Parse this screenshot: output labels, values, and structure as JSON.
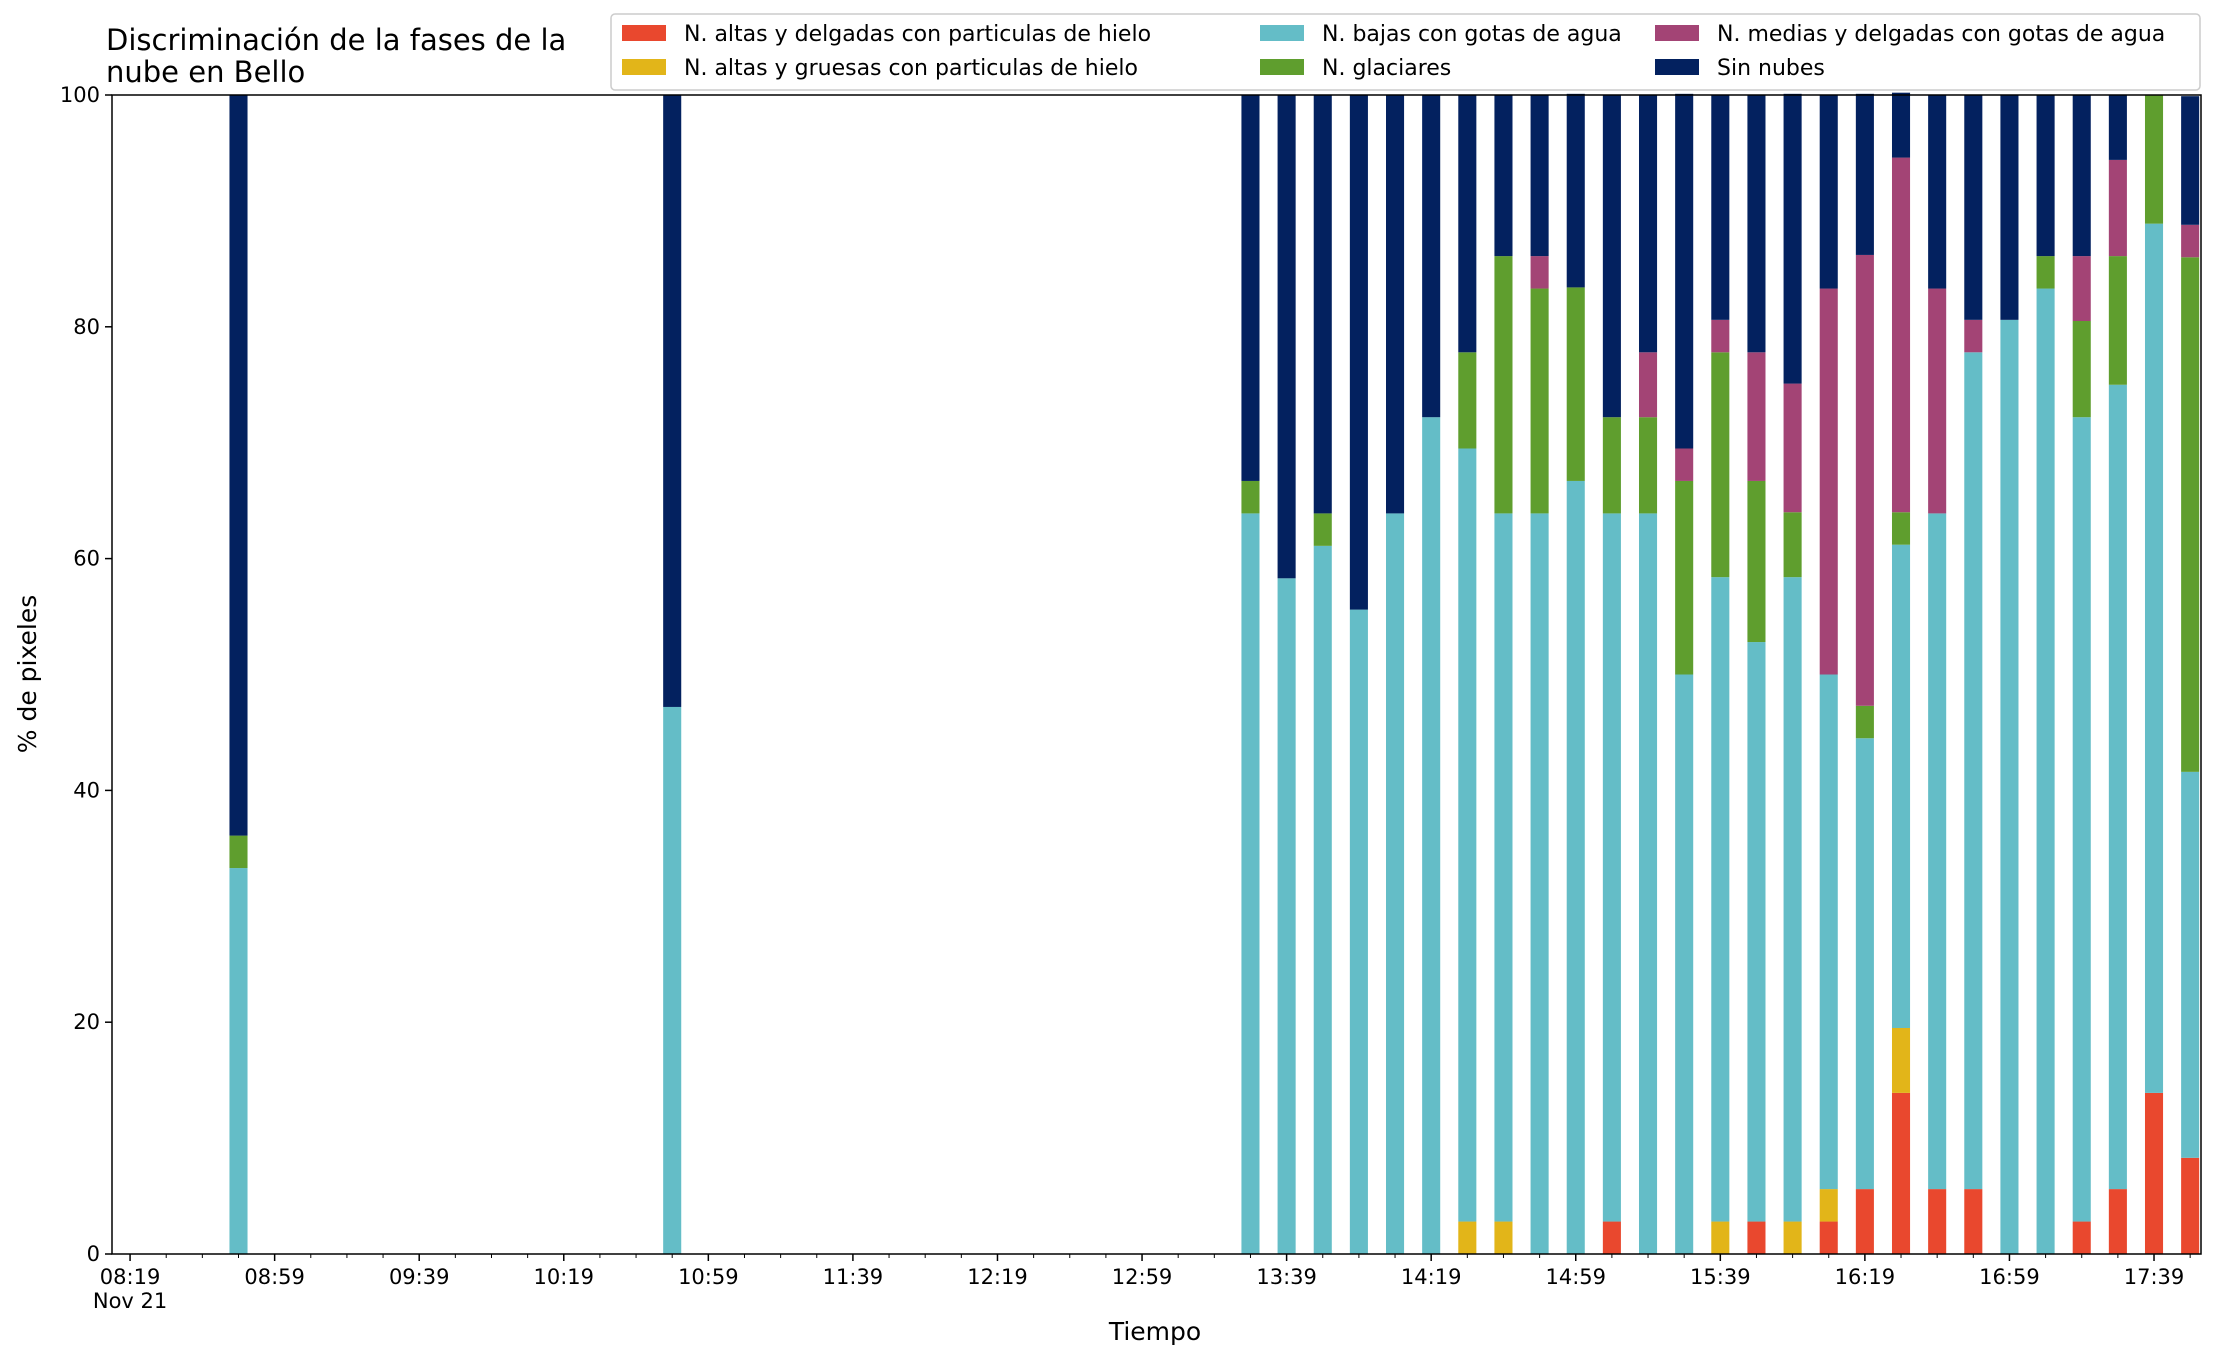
{
  "chart_data": {
    "type": "bar",
    "stacked": true,
    "title": "Discriminación de la fases de la\nnube en Bello",
    "xlabel": "Tiempo",
    "ylabel": "% de pixeles",
    "ylim": [
      0,
      100
    ],
    "xlim": [
      "08:14",
      "17:52"
    ],
    "x_ticks": [
      "08:19",
      "08:59",
      "09:39",
      "10:19",
      "10:59",
      "11:39",
      "12:19",
      "12:59",
      "13:39",
      "14:19",
      "14:59",
      "15:39",
      "16:19",
      "16:59",
      "17:39"
    ],
    "x_date_label": "Nov 21",
    "y_ticks": [
      0,
      20,
      40,
      60,
      80,
      100
    ],
    "legend_position": "top-right",
    "grid": false,
    "bar_width_minutes": 5,
    "x": [
      "08:49",
      "10:49",
      "13:29",
      "13:39",
      "13:49",
      "13:59",
      "14:09",
      "14:19",
      "14:29",
      "14:39",
      "14:49",
      "14:59",
      "15:09",
      "15:19",
      "15:29",
      "15:39",
      "15:49",
      "15:59",
      "16:09",
      "16:19",
      "16:29",
      "16:39",
      "16:49",
      "16:59",
      "17:09",
      "17:19",
      "17:29",
      "17:39",
      "17:49"
    ],
    "series": [
      {
        "name": "N. altas y delgadas con particulas de hielo",
        "color": "#e9482e",
        "values": [
          0,
          0,
          0,
          0,
          0,
          0,
          0,
          0,
          0,
          0,
          0,
          0,
          2.8,
          0,
          0,
          0,
          2.8,
          0,
          2.8,
          5.6,
          13.9,
          5.6,
          5.6,
          0,
          0,
          2.8,
          5.6,
          13.9,
          8.3
        ]
      },
      {
        "name": "N. altas y gruesas con particulas de hielo",
        "color": "#e2b519",
        "values": [
          0,
          0,
          0,
          0,
          0,
          0,
          0,
          0,
          2.8,
          2.8,
          0,
          0,
          0,
          0,
          0,
          2.8,
          0,
          2.8,
          2.8,
          0,
          5.6,
          0,
          0,
          0,
          0,
          0,
          0,
          0,
          0
        ]
      },
      {
        "name": "N. bajas con gotas de agua",
        "color": "#64bdc7",
        "values": [
          33.3,
          47.2,
          63.9,
          58.3,
          61.1,
          55.6,
          63.9,
          72.2,
          66.7,
          61.1,
          63.9,
          66.7,
          61.1,
          63.9,
          50.0,
          55.6,
          50.0,
          55.6,
          44.4,
          38.9,
          41.7,
          58.3,
          72.2,
          80.6,
          83.3,
          69.4,
          69.4,
          75.0,
          33.3
        ]
      },
      {
        "name": "N. glaciares",
        "color": "#5f9e2e",
        "values": [
          2.8,
          0,
          2.8,
          0,
          2.8,
          0,
          0,
          0,
          8.3,
          22.2,
          19.4,
          16.7,
          8.3,
          8.3,
          16.7,
          19.4,
          13.9,
          5.6,
          0,
          2.8,
          2.8,
          0,
          0,
          0,
          2.8,
          8.3,
          11.1,
          11.1,
          44.4
        ]
      },
      {
        "name": "N. medias y delgadas con gotas de agua",
        "color": "#a34475",
        "values": [
          0,
          0,
          0,
          0,
          0,
          0,
          0,
          0,
          0,
          0,
          2.8,
          0,
          0,
          5.6,
          2.8,
          2.8,
          11.1,
          11.1,
          33.3,
          38.9,
          30.6,
          19.4,
          2.8,
          0,
          0,
          5.6,
          8.3,
          0,
          2.8
        ]
      },
      {
        "name": "Sin nubes",
        "color": "#03215f",
        "values": [
          63.9,
          52.8,
          33.3,
          41.7,
          36.1,
          44.4,
          36.1,
          27.8,
          22.2,
          13.9,
          13.9,
          16.7,
          27.8,
          22.2,
          30.6,
          19.4,
          22.2,
          25.0,
          16.7,
          13.9,
          5.6,
          16.7,
          19.4,
          19.4,
          13.9,
          13.9,
          5.6,
          0,
          11.1
        ]
      }
    ]
  }
}
